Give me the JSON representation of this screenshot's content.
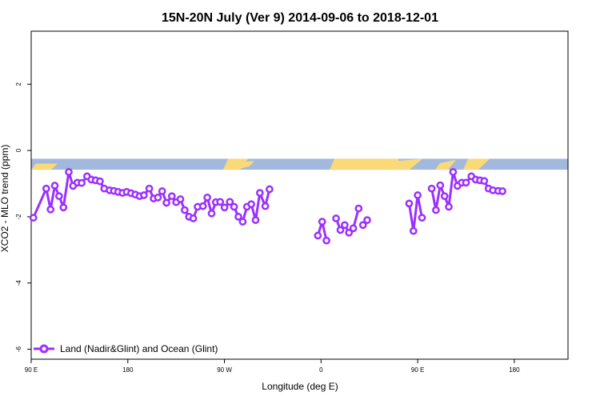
{
  "chart_data": {
    "type": "line",
    "title": "15N-20N July (Ver 9)   2014-09-06 to 2018-12-01",
    "xlabel": "Longitude (deg E)",
    "ylabel": "XCO2 - MLO trend (ppm)",
    "xlim": [
      90,
      590
    ],
    "ylim": [
      -6.3,
      3.6
    ],
    "x_ticks": [
      {
        "value": 90,
        "label": "90 E"
      },
      {
        "value": 180,
        "label": "180"
      },
      {
        "value": 270,
        "label": "90 W"
      },
      {
        "value": 360,
        "label": "0"
      },
      {
        "value": 450,
        "label": "90 E"
      },
      {
        "value": 540,
        "label": "180"
      }
    ],
    "y_ticks": [
      {
        "value": 2,
        "label": "2"
      },
      {
        "value": 0,
        "label": "0"
      },
      {
        "value": -2,
        "label": "-2"
      },
      {
        "value": -4,
        "label": "-4"
      },
      {
        "value": -6,
        "label": "-6"
      }
    ],
    "grid": false,
    "legend": "bottom-left",
    "series_color": "#9b30ff",
    "map_strip": {
      "ymin": -0.58,
      "ymax": -0.25,
      "ocean_color": "#a2b8dc",
      "land_color": "#fad978"
    },
    "series": [
      {
        "name": "Land (Nadir&Glint) and Ocean (Glint)",
        "segments": [
          [
            [
              92,
              -2.03
            ],
            [
              104,
              -1.15
            ],
            [
              108,
              -1.78
            ],
            [
              112,
              -1.06
            ],
            [
              116,
              -1.38
            ],
            [
              120,
              -1.72
            ],
            [
              125,
              -0.65
            ],
            [
              129,
              -1.07
            ],
            [
              133,
              -0.97
            ],
            [
              137,
              -0.98
            ],
            [
              142,
              -0.78
            ],
            [
              146,
              -0.88
            ],
            [
              150,
              -0.9
            ],
            [
              154,
              -0.93
            ],
            [
              158,
              -1.15
            ],
            [
              163,
              -1.2
            ],
            [
              167,
              -1.22
            ],
            [
              171,
              -1.25
            ],
            [
              175,
              -1.28
            ],
            [
              179,
              -1.25
            ],
            [
              183,
              -1.29
            ],
            [
              187,
              -1.33
            ],
            [
              191,
              -1.38
            ],
            [
              195,
              -1.35
            ],
            [
              200,
              -1.15
            ],
            [
              204,
              -1.45
            ],
            [
              208,
              -1.42
            ],
            [
              212,
              -1.23
            ],
            [
              216,
              -1.58
            ],
            [
              221,
              -1.38
            ],
            [
              225,
              -1.56
            ],
            [
              229,
              -1.47
            ],
            [
              233,
              -1.8
            ],
            [
              237,
              -2.0
            ],
            [
              241,
              -2.05
            ],
            [
              245,
              -1.7
            ],
            [
              250,
              -1.68
            ],
            [
              254,
              -1.42
            ],
            [
              258,
              -1.9
            ],
            [
              262,
              -1.56
            ],
            [
              266,
              -1.55
            ],
            [
              270,
              -1.72
            ],
            [
              275,
              -1.55
            ],
            [
              279,
              -1.7
            ],
            [
              283,
              -2.0
            ],
            [
              287,
              -2.15
            ],
            [
              291,
              -1.7
            ],
            [
              295,
              -1.62
            ],
            [
              299,
              -2.1
            ],
            [
              303,
              -1.28
            ],
            [
              308,
              -1.68
            ],
            [
              312,
              -1.17
            ]
          ],
          [
            [
              357,
              -2.57
            ],
            [
              361,
              -2.15
            ],
            [
              365,
              -2.72
            ]
          ],
          [
            [
              374,
              -2.05
            ],
            [
              378,
              -2.4
            ],
            [
              382,
              -2.25
            ],
            [
              386,
              -2.48
            ],
            [
              390,
              -2.35
            ],
            [
              395,
              -1.75
            ]
          ],
          [
            [
              399,
              -2.25
            ],
            [
              403,
              -2.1
            ]
          ],
          [
            [
              442,
              -1.6
            ],
            [
              446,
              -2.43
            ],
            [
              450,
              -1.35
            ],
            [
              454,
              -2.03
            ]
          ],
          [
            [
              463,
              -1.15
            ],
            [
              467,
              -1.8
            ],
            [
              471,
              -1.05
            ],
            [
              475,
              -1.38
            ],
            [
              479,
              -1.7
            ],
            [
              483,
              -0.65
            ],
            [
              487,
              -1.07
            ],
            [
              491,
              -0.97
            ],
            [
              495,
              -0.97
            ],
            [
              500,
              -0.78
            ],
            [
              504,
              -0.88
            ],
            [
              508,
              -0.9
            ],
            [
              512,
              -0.92
            ],
            [
              516,
              -1.15
            ],
            [
              520,
              -1.2
            ],
            [
              525,
              -1.22
            ],
            [
              529,
              -1.23
            ]
          ]
        ]
      }
    ]
  }
}
